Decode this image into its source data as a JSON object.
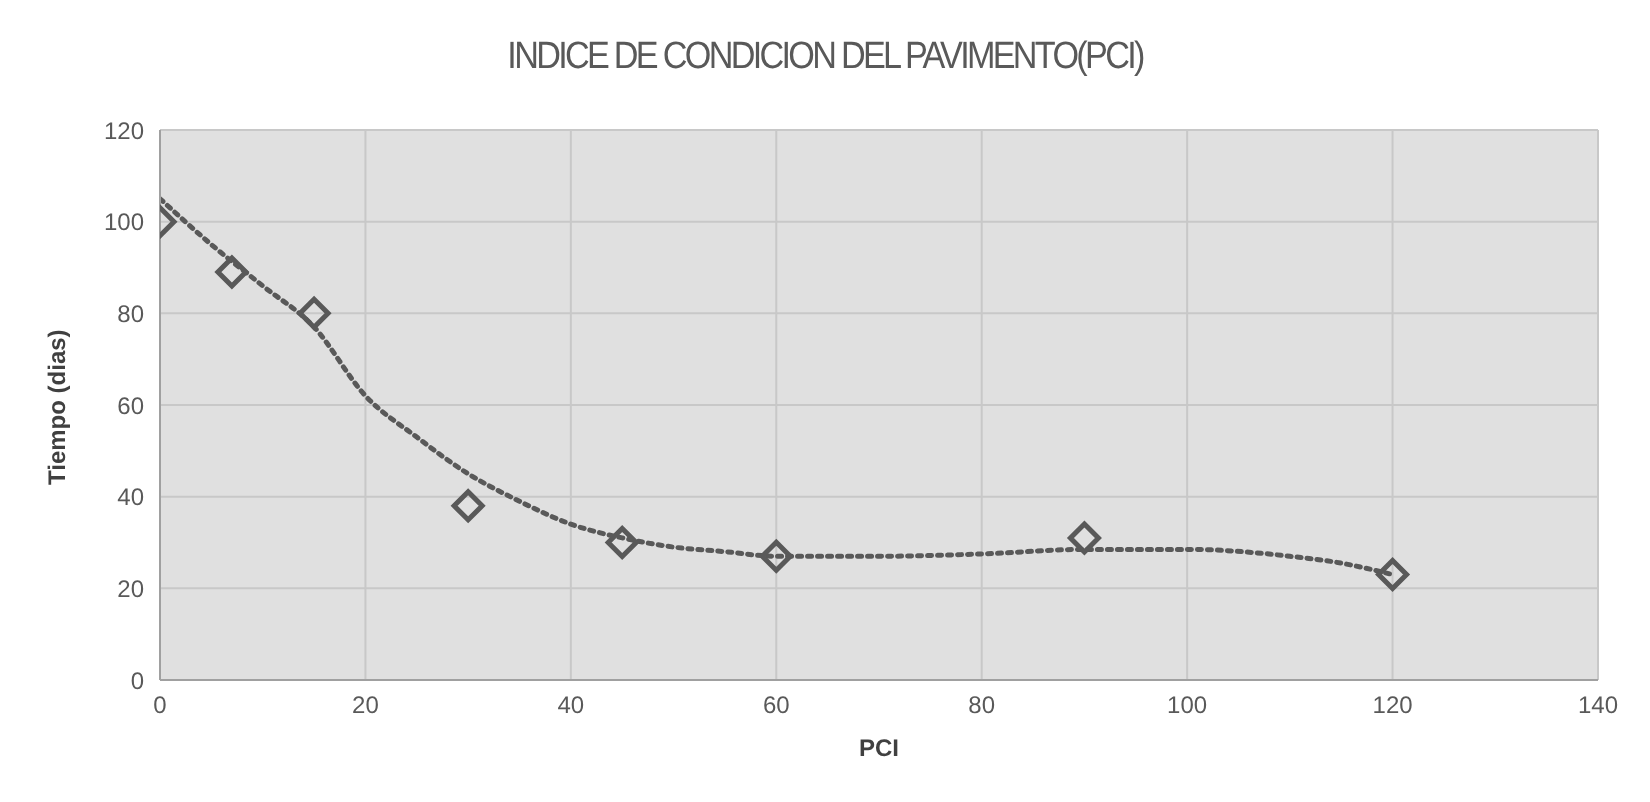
{
  "chart_data": {
    "type": "scatter",
    "title": "INDICE DE CONDICION DEL PAVIMENTO(PCI)",
    "xlabel": "PCI",
    "ylabel": "Tiempo (dias)",
    "x": [
      0,
      7,
      15,
      30,
      45,
      60,
      90,
      120
    ],
    "series": [
      {
        "color": "#595959",
        "marker": "diamond",
        "values": [
          100,
          89,
          80,
          38,
          30,
          27,
          31,
          23
        ]
      },
      {
        "type": "line",
        "color": "#595959",
        "line_style": "dotted",
        "marker": "none",
        "x": [
          0,
          5,
          10,
          15,
          20,
          25,
          30,
          35,
          40,
          45,
          50,
          55,
          60,
          70,
          80,
          90,
          100,
          110,
          115,
          120
        ],
        "values": [
          105,
          95,
          86,
          77,
          62,
          53,
          45,
          39,
          34,
          31,
          29,
          28,
          27,
          27,
          27.5,
          28.5,
          28.5,
          27,
          25.5,
          23
        ]
      }
    ],
    "xlim": [
      0,
      140
    ],
    "xticks": [
      0,
      20,
      40,
      60,
      80,
      100,
      120,
      140
    ],
    "ylim": [
      0,
      120
    ],
    "yticks": [
      0,
      20,
      40,
      60,
      80,
      100,
      120
    ],
    "grid": true
  }
}
